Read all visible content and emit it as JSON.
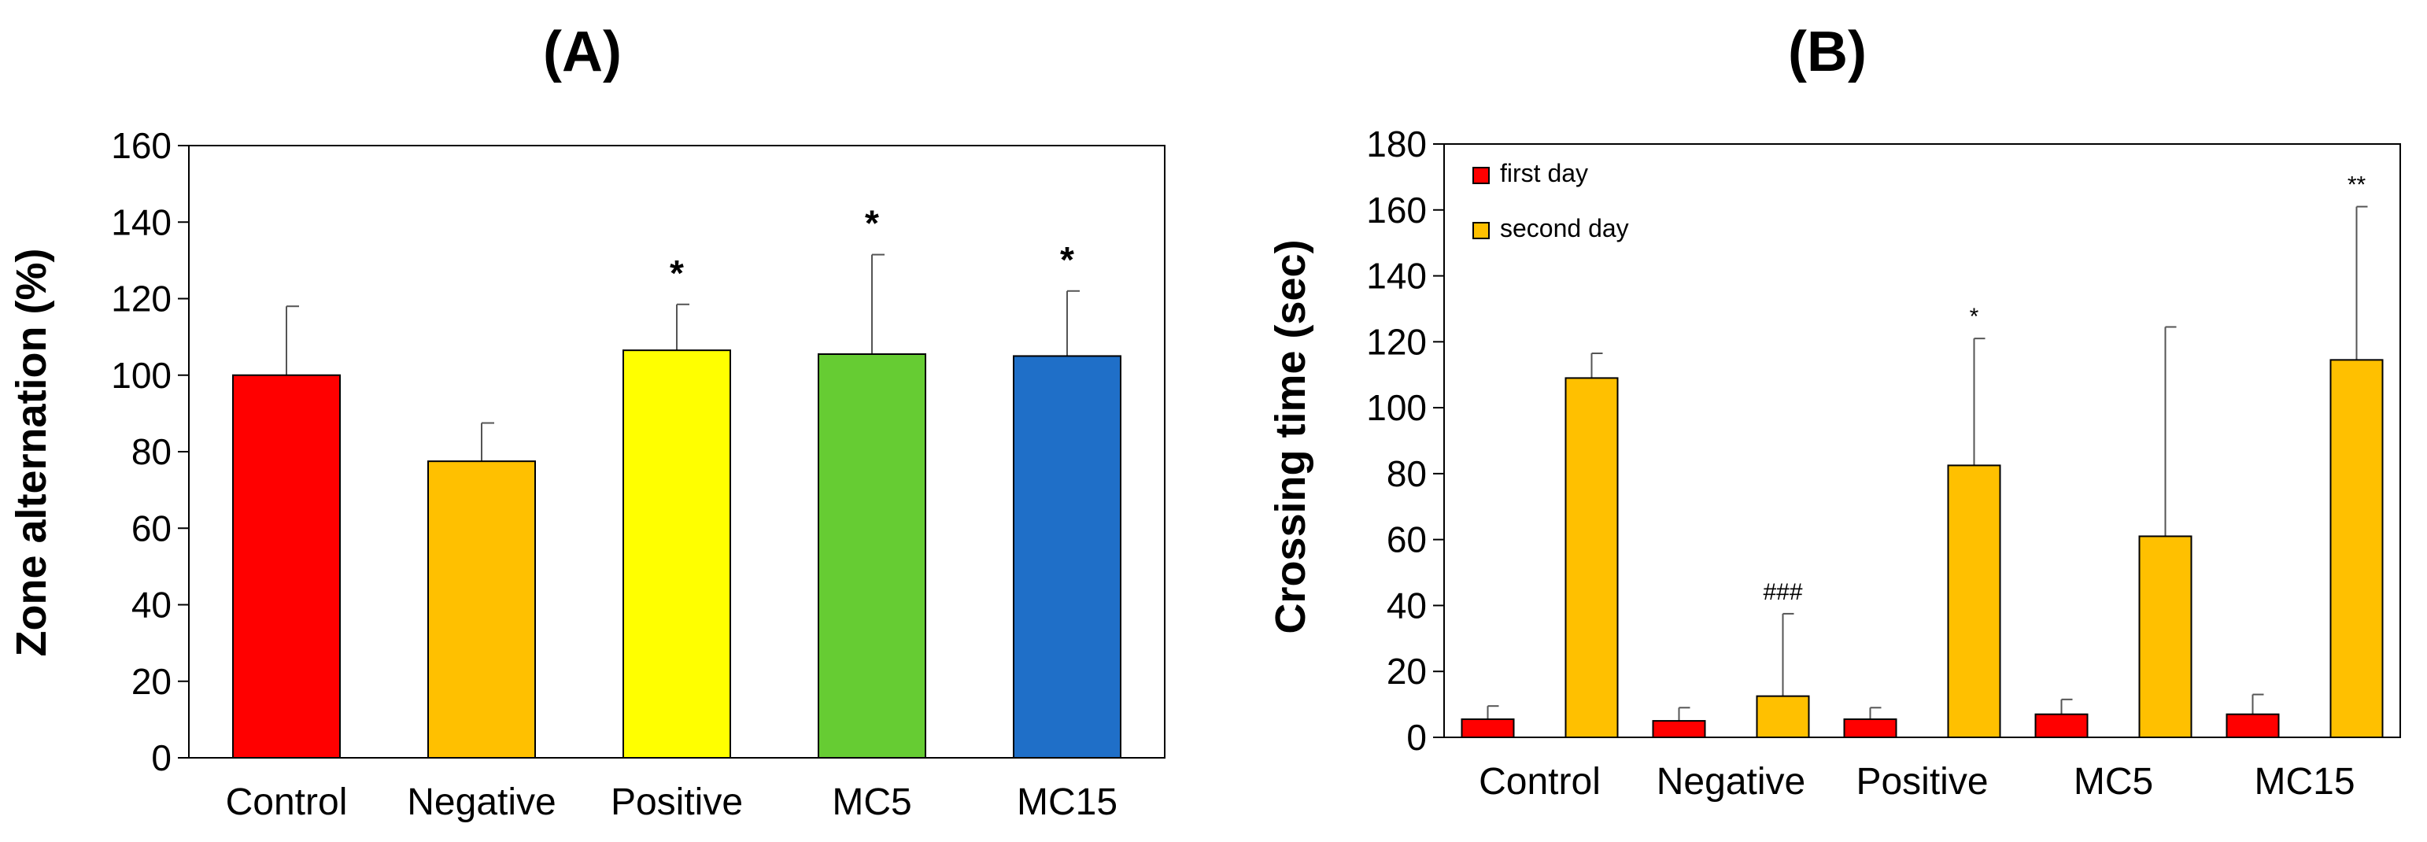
{
  "chart_data": [
    {
      "type": "bar",
      "title": "(A)",
      "ylabel": "Zone alternation  (%)",
      "xlabel": "",
      "ylim": [
        0,
        160
      ],
      "yticks": [
        0,
        20,
        40,
        60,
        80,
        100,
        120,
        140,
        160
      ],
      "grid": false,
      "categories": [
        "Control",
        "Negative",
        "Positive",
        "MC5",
        "MC15"
      ],
      "values": [
        100,
        77.5,
        106.5,
        105.5,
        105
      ],
      "errors": [
        18,
        10,
        12,
        26,
        17
      ],
      "colors": [
        "#ff0000",
        "#ffc000",
        "#ffff00",
        "#66cc33",
        "#1f6fc8"
      ],
      "annotations": [
        "",
        "",
        "*",
        "*",
        "*"
      ]
    },
    {
      "type": "bar",
      "title": "(B)",
      "ylabel": "Crossing  time (sec)",
      "xlabel": "",
      "ylim": [
        0,
        180
      ],
      "yticks": [
        0,
        20,
        40,
        60,
        80,
        100,
        120,
        140,
        160,
        180
      ],
      "grid": false,
      "legend_position": "top-left",
      "categories": [
        "Control",
        "Negative",
        "Positive",
        "MC5",
        "MC15"
      ],
      "series": [
        {
          "name": "first day",
          "color": "#ff0000",
          "values": [
            5.5,
            5,
            5.5,
            7,
            7
          ],
          "errors": [
            4,
            4,
            3.5,
            4.5,
            6
          ],
          "annotations": [
            "",
            "",
            "",
            "",
            ""
          ]
        },
        {
          "name": "second day",
          "color": "#ffc000",
          "values": [
            109,
            12.5,
            82.5,
            61,
            114.5
          ],
          "errors": [
            7.5,
            25,
            38.5,
            63.5,
            46.5
          ],
          "annotations": [
            "",
            "###",
            "*",
            "",
            "**"
          ]
        }
      ]
    }
  ]
}
